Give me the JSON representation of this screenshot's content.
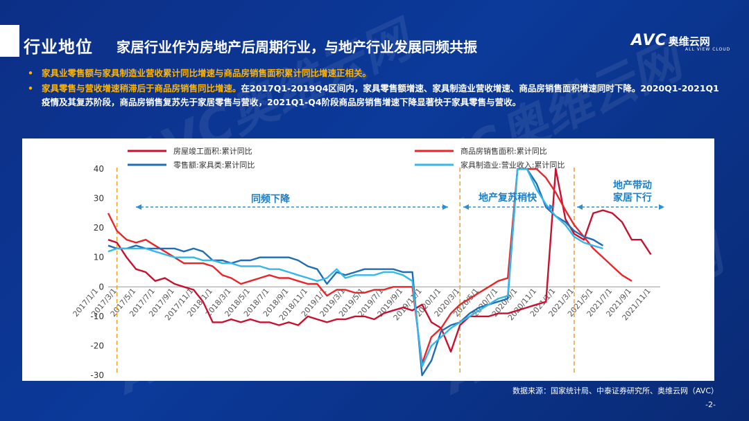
{
  "header": {
    "title": "行业地位",
    "subtitle": "家居行业作为房地产后周期行业，与地产行业发展同频共振",
    "logo_text": "AVC",
    "logo_cn": "奥维云网",
    "logo_sub": "ALL VIEW CLOUD"
  },
  "bullets": [
    {
      "highlight": "家具业零售额与家具制造业营收累计同比增速与商品房销售面积累计同比增速正相关。",
      "rest": ""
    },
    {
      "highlight": "家具零售与营收增速稍滞后于商品房销售同比增速。",
      "rest": "在2017Q1-2019Q4区间内，家具零售额增速、家具制造业营收增速、商品房销售面积增速同时下降。2020Q1-2021Q1疫情及其复苏阶段，商品房销售复苏先于家居零售与营收，2021Q1-Q4阶段商品房销售增速下降显著快于家具零售与营收。"
    }
  ],
  "footer": {
    "source": "数据来源：国家统计局、中泰证券研究所、奥维云网（AVC）",
    "page": "-2-"
  },
  "chart_data": {
    "type": "line",
    "ylim": [
      -30,
      40
    ],
    "yticks": [
      -30,
      -20,
      -10,
      0,
      10,
      20,
      30,
      40
    ],
    "x_start": "2017-02",
    "x_tick_labels": [
      "2017/1/1",
      "2017/3/1",
      "2017/5/1",
      "2017/7/1",
      "2017/9/1",
      "2017/11/1",
      "2018/1/1",
      "2018/3/1",
      "2018/5/1",
      "2018/7/1",
      "2018/9/1",
      "2018/11/1",
      "2019/1/1",
      "2019/3/1",
      "2019/5/1",
      "2019/7/1",
      "2019/9/1",
      "2019/11/1",
      "2020/1/1",
      "2020/3/1",
      "2020/5/1",
      "2020/7/1",
      "2020/9/1",
      "2020/11/1",
      "2021/1/1",
      "2021/3/1",
      "2021/5/1",
      "2021/7/1",
      "2021/9/1",
      "2021/11/1"
    ],
    "series": [
      {
        "name": "房屋竣工面积:累计同比",
        "color": "#c8102e",
        "values": [
          16,
          15,
          10,
          6,
          5,
          2,
          3,
          1,
          0,
          -1,
          -5,
          -12,
          -12,
          -11,
          -12,
          -11,
          -12,
          -12,
          -13,
          -12,
          -13,
          -10,
          -11,
          -12,
          -11,
          -11,
          -10,
          -10,
          -11,
          -9,
          -8,
          -7,
          -8,
          -6,
          -12,
          -14,
          -22,
          -13,
          -10,
          -10,
          -10,
          -9,
          -9,
          -8,
          -7,
          -6,
          -5,
          40,
          23,
          18,
          16,
          25,
          26,
          25,
          22,
          16,
          16,
          11
        ]
      },
      {
        "name": "商品房销售面积:累计同比",
        "color": "#e8262a",
        "values": [
          25,
          19,
          16,
          15,
          16,
          14,
          12,
          10,
          8,
          8,
          8,
          7,
          4,
          3,
          1,
          2,
          3,
          4,
          3,
          3,
          2,
          1,
          1,
          -3,
          -1,
          -1,
          -2,
          -2,
          -1,
          -1,
          0,
          0,
          0,
          -26,
          -17,
          -14,
          -9,
          -6,
          -4,
          -2,
          0,
          2,
          3,
          40,
          40,
          40,
          37,
          32,
          26,
          21,
          17,
          13,
          10,
          7,
          4,
          2
        ]
      },
      {
        "name": "零售额:家具类:累计同比",
        "color": "#1f6db5",
        "values": [
          14,
          13,
          13,
          14,
          13,
          13,
          13,
          13,
          12,
          13,
          12,
          9,
          9,
          8,
          9,
          9,
          10,
          10,
          10,
          10,
          9,
          7,
          6,
          1,
          5,
          4,
          5,
          6,
          6,
          6,
          6,
          5,
          5,
          -33,
          -25,
          -15,
          -13,
          -12,
          -9,
          -7,
          -6,
          -5,
          -4,
          40,
          40,
          35,
          27,
          24,
          22,
          19,
          17,
          16,
          14
        ]
      },
      {
        "name": "家具制造业:营业收入:累计同比",
        "color": "#35b7ea",
        "values": [
          12,
          13,
          13,
          13,
          13,
          12,
          11,
          10,
          10,
          10,
          9,
          9,
          8,
          8,
          7,
          7,
          7,
          6,
          6,
          5,
          4,
          3,
          2,
          3,
          6,
          3,
          4,
          4,
          4,
          5,
          5,
          4,
          2,
          -27,
          -20,
          -17,
          -14,
          -12,
          -10,
          -8,
          -6,
          -4,
          -3,
          40,
          40,
          33,
          28,
          24,
          21,
          17,
          15,
          14,
          13
        ]
      }
    ],
    "vlines": [
      "2017-03",
      "2020-03",
      "2021-03"
    ],
    "annotations": [
      "同频下降",
      "地产复苏稍快",
      "地产带动",
      "家居下行"
    ]
  }
}
